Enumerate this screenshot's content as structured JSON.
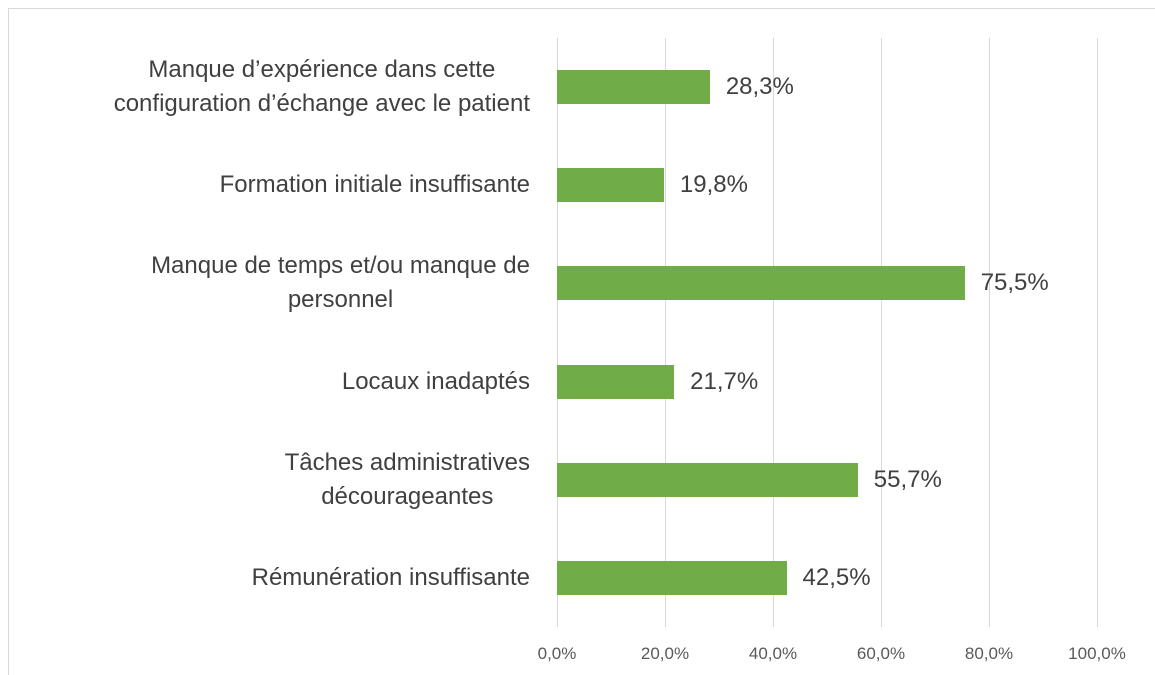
{
  "chart_data": {
    "type": "bar",
    "orientation": "horizontal",
    "categories": [
      "Manque d’expérience dans cette\nconfiguration d’échange avec le patient",
      "Formation initiale insuffisante",
      "Manque de temps et/ou manque de\npersonnel",
      "Locaux inadaptés",
      "Tâches administratives\ndécourageantes",
      "Rémunération insuffisante"
    ],
    "values": [
      28.3,
      19.8,
      75.5,
      21.7,
      55.7,
      42.5
    ],
    "value_labels": [
      "28,3%",
      "19,8%",
      "75,5%",
      "21,7%",
      "55,7%",
      "42,5%"
    ],
    "color": "#70ad47",
    "xlim": [
      0,
      100
    ],
    "xticks": [
      {
        "value": 0,
        "label": "0,0%"
      },
      {
        "value": 20,
        "label": "20,0%"
      },
      {
        "value": 40,
        "label": "40,0%"
      },
      {
        "value": 60,
        "label": "60,0%"
      },
      {
        "value": 80,
        "label": "80,0%"
      },
      {
        "value": 100,
        "label": "100,0%"
      }
    ],
    "grid": true
  }
}
